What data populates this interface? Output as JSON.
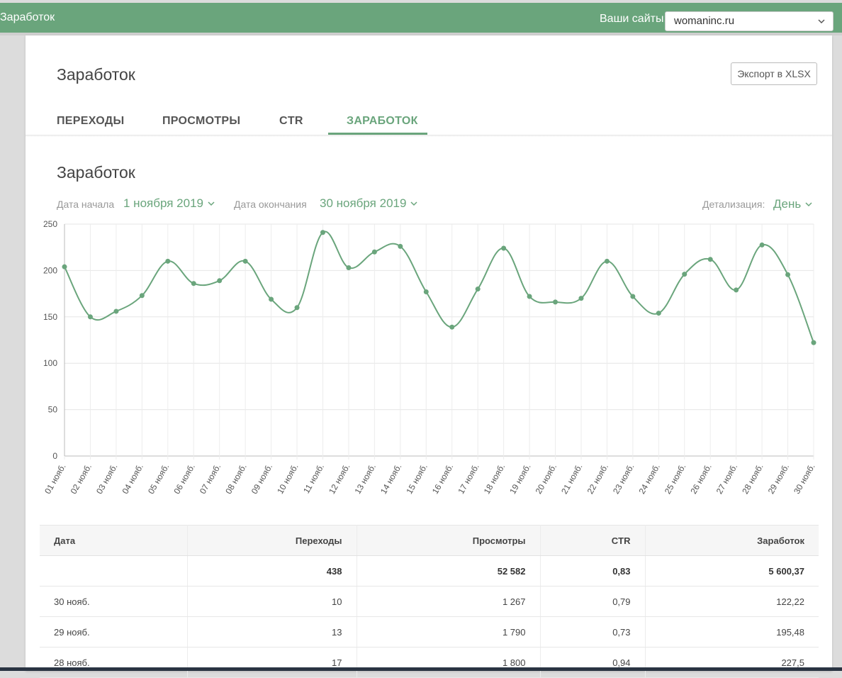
{
  "topbar": {
    "app_title": "Заработок",
    "sites_label": "Ваши сайты:",
    "selected_site": "womaninc.ru"
  },
  "header": {
    "title": "Заработок",
    "export_label": "Экспорт в XLSX",
    "tabs": [
      {
        "label": "ПЕРЕХОДЫ",
        "active": false
      },
      {
        "label": "ПРОСМОТРЫ",
        "active": false
      },
      {
        "label": "CTR",
        "active": false
      },
      {
        "label": "ЗАРАБОТОК",
        "active": true
      }
    ]
  },
  "section": {
    "title": "Заработок",
    "start_label": "Дата начала",
    "start_value": "1 ноября 2019",
    "end_label": "Дата окончания",
    "end_value": "30 ноября 2019",
    "detail_label": "Детализация:",
    "detail_value": "День"
  },
  "chart_data": {
    "type": "line",
    "categories": [
      "01 нояб.",
      "02 нояб.",
      "03 нояб.",
      "04 нояб.",
      "05 нояб.",
      "06 нояб.",
      "07 нояб.",
      "08 нояб.",
      "09 нояб.",
      "10 нояб.",
      "11 нояб.",
      "12 нояб.",
      "13 нояб.",
      "14 нояб.",
      "15 нояб.",
      "16 нояб.",
      "17 нояб.",
      "18 нояб.",
      "19 нояб.",
      "20 нояб.",
      "21 нояб.",
      "22 нояб.",
      "23 нояб.",
      "24 нояб.",
      "25 нояб.",
      "26 нояб.",
      "27 нояб.",
      "28 нояб.",
      "29 нояб.",
      "30 нояб."
    ],
    "values": [
      204,
      150,
      156,
      173,
      210,
      186,
      189,
      210,
      169,
      160,
      241,
      203,
      220,
      226,
      177,
      139,
      180,
      224,
      172,
      166,
      170,
      210,
      172,
      154,
      196,
      212,
      179,
      227.5,
      195.48,
      122.22
    ],
    "ylim": [
      0,
      250
    ],
    "yticks": [
      0,
      50,
      100,
      150,
      200,
      250
    ],
    "grid": true,
    "color": "#6aa57c"
  },
  "table": {
    "columns": [
      "Дата",
      "Переходы",
      "Просмотры",
      "CTR",
      "Заработок"
    ],
    "totals": [
      "",
      "438",
      "52 582",
      "0,83",
      "5 600,37"
    ],
    "rows": [
      [
        "30 нояб.",
        "10",
        "1 267",
        "0,79",
        "122,22"
      ],
      [
        "29 нояб.",
        "13",
        "1 790",
        "0,73",
        "195,48"
      ],
      [
        "28 нояб.",
        "17",
        "1 800",
        "0,94",
        "227,5"
      ]
    ]
  },
  "colors": {
    "accent": "#6aa57c",
    "topbar": "#6aa57c"
  }
}
